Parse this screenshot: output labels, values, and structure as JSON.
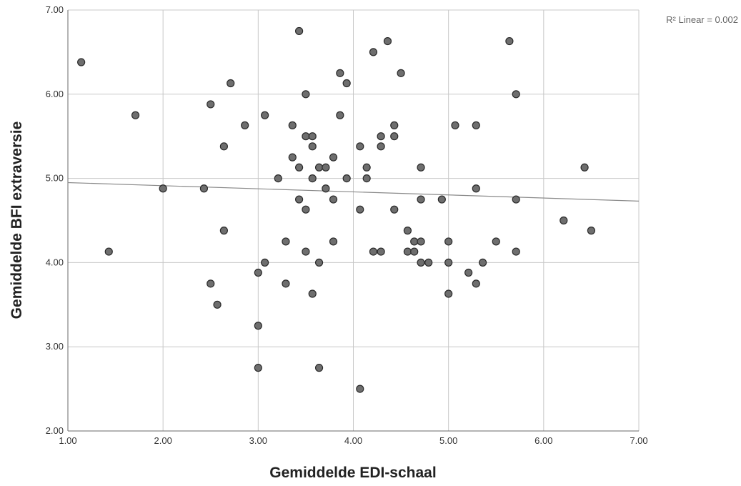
{
  "chart_data": {
    "type": "scatter",
    "xlabel": "Gemiddelde EDI-schaal",
    "ylabel": "Gemiddelde BFI extraversie",
    "xlim": [
      1.0,
      7.0
    ],
    "ylim": [
      2.0,
      7.0
    ],
    "xticks": [
      "1.00",
      "2.00",
      "3.00",
      "4.00",
      "5.00",
      "6.00",
      "7.00"
    ],
    "yticks": [
      "2.00",
      "3.00",
      "4.00",
      "5.00",
      "6.00",
      "7.00"
    ],
    "grid": true,
    "annotation": "R² Linear = 0.002",
    "fit_line": {
      "x": [
        1.0,
        7.0
      ],
      "y": [
        4.95,
        4.73
      ]
    },
    "colors": {
      "point_fill": "#6e6e6e",
      "point_stroke": "#2a2a2a",
      "grid": "#c8c8c8",
      "axis": "#6a6a6a",
      "fit_line": "#8a8a8a"
    },
    "points": [
      [
        1.14,
        6.38
      ],
      [
        1.43,
        4.13
      ],
      [
        1.71,
        5.75
      ],
      [
        2.0,
        4.88
      ],
      [
        2.43,
        4.88
      ],
      [
        2.5,
        5.88
      ],
      [
        2.5,
        3.75
      ],
      [
        2.57,
        3.5
      ],
      [
        2.64,
        5.38
      ],
      [
        2.64,
        4.38
      ],
      [
        2.71,
        6.13
      ],
      [
        2.86,
        5.63
      ],
      [
        3.0,
        3.88
      ],
      [
        3.0,
        3.25
      ],
      [
        3.0,
        2.75
      ],
      [
        3.07,
        5.75
      ],
      [
        3.07,
        4.0
      ],
      [
        3.21,
        5.0
      ],
      [
        3.29,
        4.25
      ],
      [
        3.29,
        3.75
      ],
      [
        3.36,
        5.63
      ],
      [
        3.36,
        5.25
      ],
      [
        3.43,
        6.75
      ],
      [
        3.43,
        5.13
      ],
      [
        3.43,
        4.75
      ],
      [
        3.5,
        6.0
      ],
      [
        3.5,
        5.5
      ],
      [
        3.5,
        4.63
      ],
      [
        3.5,
        4.13
      ],
      [
        3.57,
        5.5
      ],
      [
        3.57,
        5.38
      ],
      [
        3.57,
        5.0
      ],
      [
        3.57,
        3.63
      ],
      [
        3.64,
        5.13
      ],
      [
        3.64,
        4.0
      ],
      [
        3.64,
        2.75
      ],
      [
        3.71,
        5.13
      ],
      [
        3.71,
        4.88
      ],
      [
        3.79,
        5.25
      ],
      [
        3.79,
        4.75
      ],
      [
        3.79,
        4.25
      ],
      [
        3.86,
        6.25
      ],
      [
        3.86,
        5.75
      ],
      [
        3.93,
        6.13
      ],
      [
        3.93,
        5.0
      ],
      [
        4.07,
        5.38
      ],
      [
        4.07,
        4.63
      ],
      [
        4.07,
        2.5
      ],
      [
        4.14,
        5.13
      ],
      [
        4.14,
        5.0
      ],
      [
        4.21,
        6.5
      ],
      [
        4.21,
        4.13
      ],
      [
        4.29,
        5.5
      ],
      [
        4.29,
        5.38
      ],
      [
        4.29,
        4.13
      ],
      [
        4.36,
        6.63
      ],
      [
        4.43,
        5.63
      ],
      [
        4.43,
        5.5
      ],
      [
        4.43,
        4.63
      ],
      [
        4.5,
        6.25
      ],
      [
        4.57,
        4.38
      ],
      [
        4.57,
        4.13
      ],
      [
        4.64,
        4.25
      ],
      [
        4.64,
        4.13
      ],
      [
        4.71,
        5.13
      ],
      [
        4.71,
        4.75
      ],
      [
        4.71,
        4.25
      ],
      [
        4.71,
        4.0
      ],
      [
        4.79,
        4.0
      ],
      [
        4.93,
        4.75
      ],
      [
        5.0,
        4.25
      ],
      [
        5.0,
        4.0
      ],
      [
        5.0,
        3.63
      ],
      [
        5.07,
        5.63
      ],
      [
        5.21,
        3.88
      ],
      [
        5.29,
        5.63
      ],
      [
        5.29,
        4.88
      ],
      [
        5.29,
        3.75
      ],
      [
        5.36,
        4.0
      ],
      [
        5.5,
        4.25
      ],
      [
        5.64,
        6.63
      ],
      [
        5.71,
        6.0
      ],
      [
        5.71,
        4.75
      ],
      [
        5.71,
        4.13
      ],
      [
        6.21,
        4.5
      ],
      [
        6.43,
        5.13
      ],
      [
        6.5,
        4.38
      ]
    ]
  }
}
